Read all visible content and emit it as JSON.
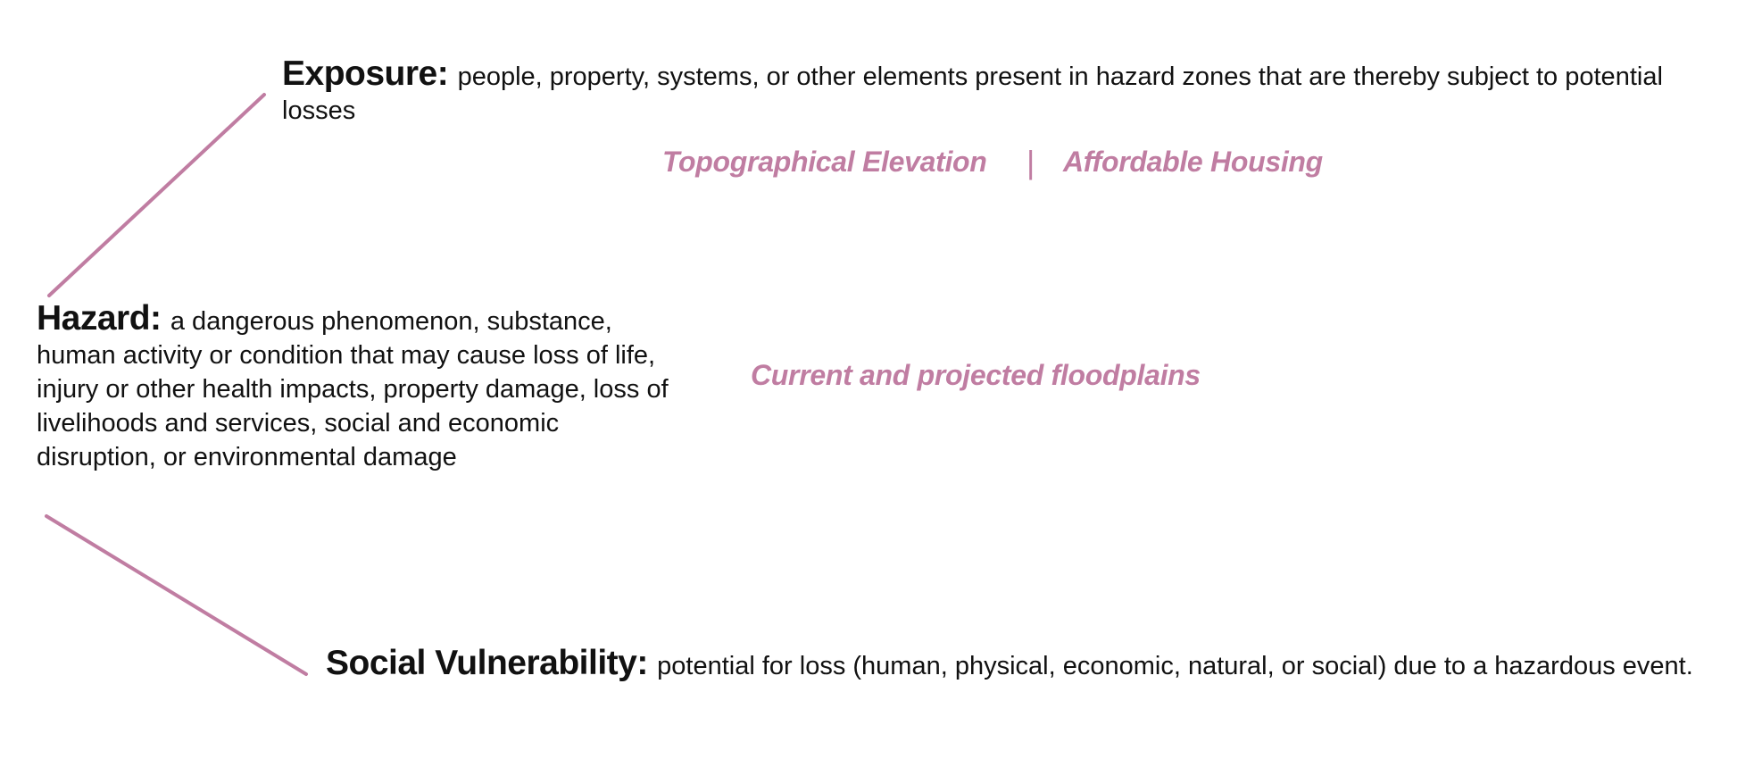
{
  "exposure": {
    "term": "Exposure:",
    "definition": "people, property, systems, or other elements present in hazard zones that are thereby subject to potential losses"
  },
  "hazard": {
    "term": "Hazard:",
    "definition": "a dangerous phenomenon, substance, human activity or condition that may cause loss of life, injury or other health impacts, property damage, loss of livelihoods and services, social and economic disruption, or environmental damage"
  },
  "social_vulnerability": {
    "term": "Social Vulnerability:",
    "definition": "potential for loss (human, physical, economic, natural, or social) due to a hazardous event."
  },
  "factors": {
    "exposure_factor_1": "Topographical Elevation",
    "separator": "|",
    "exposure_factor_2": "Affordable Housing",
    "hazard_factor": "Current and projected floodplains"
  },
  "colors": {
    "accent": "#c07da2",
    "text": "#111111",
    "background": "#ffffff"
  }
}
